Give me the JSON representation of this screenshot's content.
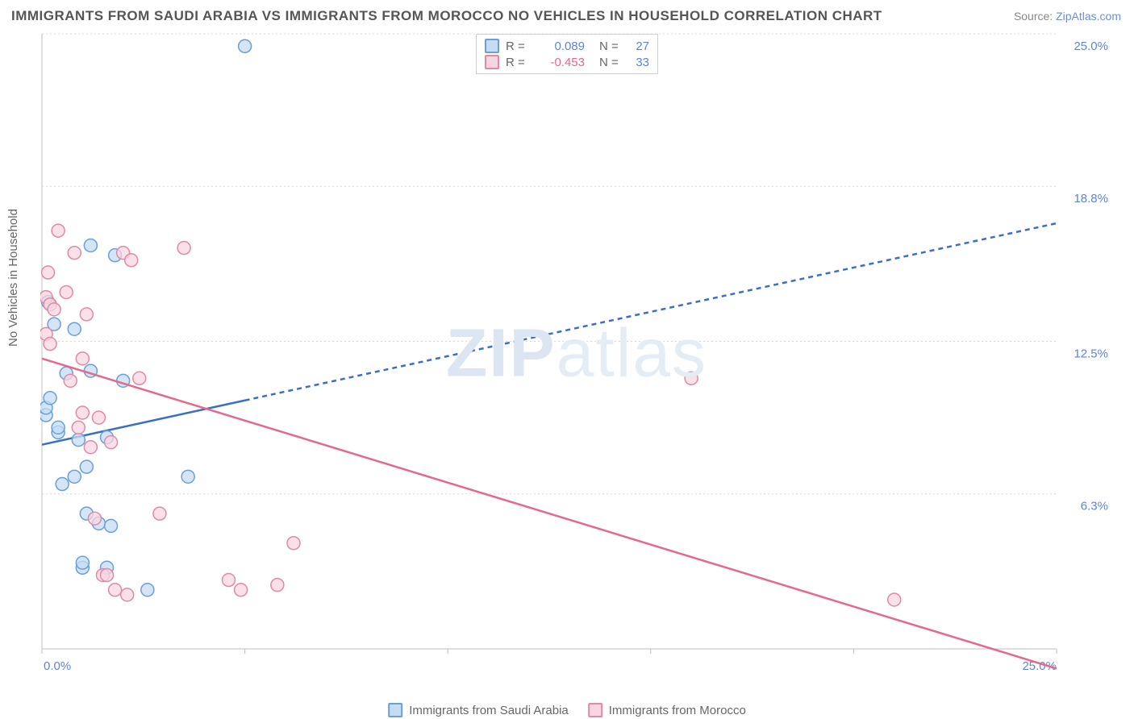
{
  "title": "IMMIGRANTS FROM SAUDI ARABIA VS IMMIGRANTS FROM MOROCCO NO VEHICLES IN HOUSEHOLD CORRELATION CHART",
  "source_label": "Source: ",
  "source_value": "ZipAtlas.com",
  "ylabel": "No Vehicles in Household",
  "watermark": "ZIPatlas",
  "chart": {
    "type": "scatter",
    "xlim": [
      0,
      25
    ],
    "ylim": [
      0,
      25
    ],
    "xticks": [
      0,
      5,
      10,
      15,
      20,
      25
    ],
    "yticks": [
      6.3,
      12.5,
      18.8,
      25.0
    ],
    "xtick_labels": [
      "0.0%",
      "",
      "",
      "",
      "",
      "25.0%"
    ],
    "ytick_labels": [
      "6.3%",
      "12.5%",
      "18.8%",
      "25.0%"
    ],
    "grid_color": "#d8d8d8",
    "axis_color": "#bfbfbf",
    "background_color": "#ffffff",
    "marker_radius": 8,
    "marker_stroke_width": 1.5,
    "trend_line_width": 2.5,
    "trend_dash": "6,5",
    "series": [
      {
        "name": "Immigrants from Saudi Arabia",
        "color_fill": "#c6dcf2",
        "color_stroke": "#6a9fd8",
        "trend_color": "#3b6fc4",
        "R": "0.089",
        "R_color": "#5b86d6",
        "N": "27",
        "N_color": "#5b86d6",
        "trend": {
          "x1": 0,
          "y1": 8.3,
          "x2": 25,
          "y2": 17.3,
          "solid_until_x": 5.0
        },
        "points": [
          [
            0.1,
            9.5
          ],
          [
            0.1,
            9.8
          ],
          [
            0.15,
            14.1
          ],
          [
            0.2,
            10.2
          ],
          [
            0.3,
            13.2
          ],
          [
            0.4,
            8.8
          ],
          [
            0.4,
            9.0
          ],
          [
            0.5,
            6.7
          ],
          [
            0.6,
            11.2
          ],
          [
            0.8,
            13.0
          ],
          [
            0.8,
            7.0
          ],
          [
            0.9,
            8.5
          ],
          [
            1.0,
            3.3
          ],
          [
            1.0,
            3.5
          ],
          [
            1.1,
            5.5
          ],
          [
            1.1,
            7.4
          ],
          [
            1.2,
            11.3
          ],
          [
            1.2,
            16.4
          ],
          [
            1.4,
            5.1
          ],
          [
            1.6,
            8.6
          ],
          [
            1.6,
            3.3
          ],
          [
            1.7,
            5.0
          ],
          [
            1.8,
            16.0
          ],
          [
            2.0,
            10.9
          ],
          [
            2.6,
            2.4
          ],
          [
            3.6,
            7.0
          ],
          [
            5.0,
            24.5
          ]
        ]
      },
      {
        "name": "Immigrants from Morocco",
        "color_fill": "#f8d6e0",
        "color_stroke": "#e08aa5",
        "trend_color": "#e36a8c",
        "R": "-0.453",
        "R_color": "#e36a8c",
        "N": "33",
        "N_color": "#5b86d6",
        "trend": {
          "x1": 0,
          "y1": 11.8,
          "x2": 25,
          "y2": -0.8,
          "solid_until_x": 25
        },
        "points": [
          [
            0.1,
            12.8
          ],
          [
            0.1,
            14.3
          ],
          [
            0.15,
            15.3
          ],
          [
            0.2,
            12.4
          ],
          [
            0.2,
            14.0
          ],
          [
            0.3,
            13.8
          ],
          [
            0.4,
            17.0
          ],
          [
            0.6,
            14.5
          ],
          [
            0.7,
            10.9
          ],
          [
            0.8,
            16.1
          ],
          [
            0.9,
            9.0
          ],
          [
            1.0,
            11.8
          ],
          [
            1.0,
            9.6
          ],
          [
            1.1,
            13.6
          ],
          [
            1.2,
            8.2
          ],
          [
            1.3,
            5.3
          ],
          [
            1.4,
            9.4
          ],
          [
            1.5,
            3.0
          ],
          [
            1.6,
            3.0
          ],
          [
            1.7,
            8.4
          ],
          [
            1.8,
            2.4
          ],
          [
            2.0,
            16.1
          ],
          [
            2.1,
            2.2
          ],
          [
            2.2,
            15.8
          ],
          [
            2.4,
            11.0
          ],
          [
            2.9,
            5.5
          ],
          [
            3.5,
            16.3
          ],
          [
            4.6,
            2.8
          ],
          [
            4.9,
            2.4
          ],
          [
            5.8,
            2.6
          ],
          [
            6.2,
            4.3
          ],
          [
            16.0,
            11.0
          ],
          [
            21.0,
            2.0
          ]
        ]
      }
    ]
  },
  "legend_top_labels": {
    "R": "R =",
    "N": "N ="
  },
  "legend_bottom": [
    "Immigrants from Saudi Arabia",
    "Immigrants from Morocco"
  ]
}
